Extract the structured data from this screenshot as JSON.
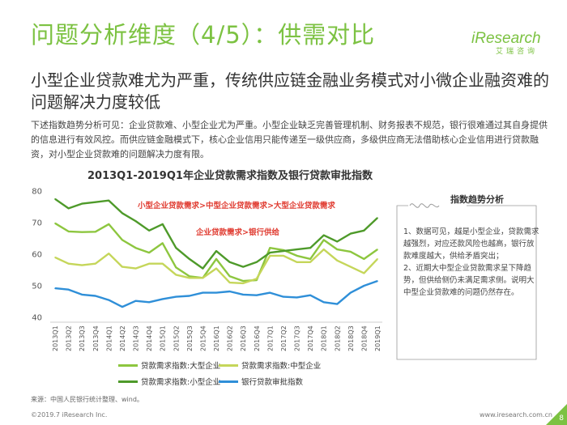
{
  "header": {
    "title": "问题分析维度（4/5）：供需对比",
    "logo_main": "iResearch",
    "logo_sub": "艾瑞咨询"
  },
  "subtitle": "小型企业贷款难尤为严重，传统供应链金融业务模式对小微企业融资难的问题解决力度较低",
  "description": "下述指数趋势分析可见：企业贷款难、小型企业尤为严重。小型企业缺乏完善管理机制、财务报表不规范，银行很难通过其自身提供的信息进行有效风控。而供应链金融模式下，核心企业信用只能传递至一级供应商，多级供应商无法借助核心企业信用进行贷款融资，对小型企业贷款难的问题解决力度有限。",
  "side_panel": {
    "heading": "指数趋势分析",
    "text": "1、数据可见，越是小型企业，贷款需求越强烈，对应还款风险也越高，银行放款难度越大，供给矛盾突出；\n2、近期大中型企业贷款需求呈下降趋势，但供给侧仍未满足需求侧。说明大中型企业贷款难的问题仍然存在。"
  },
  "footer": {
    "source": "来源：中国人民银行统计整理、wind。",
    "copyright": "©2019.7 iResearch Inc.",
    "site": "www.iresearch.com.cn",
    "page": "8"
  },
  "colors": {
    "brand": "#7cc242",
    "large": "#8dc63f",
    "medium": "#c5d65a",
    "small": "#4e9a2a",
    "bank": "#2f8fd8",
    "annotation": "#e03c31"
  },
  "chart_data": {
    "type": "line",
    "title": "2013Q1-2019Q1年企业贷款需求指数及银行贷款审批指数",
    "xlabel": "",
    "ylabel": "",
    "ylim": [
      40,
      80
    ],
    "yticks": [
      40,
      50,
      60,
      70,
      80
    ],
    "grid": false,
    "legend_position": "bottom",
    "x": [
      "2013Q1",
      "2013Q2",
      "2013Q3",
      "2013Q4",
      "2014Q1",
      "2014Q2",
      "2014Q3",
      "2014Q4",
      "2015Q1",
      "2015Q2",
      "2015Q3",
      "2015Q4",
      "2016Q1",
      "2016Q2",
      "2016Q3",
      "2016Q4",
      "2017Q1",
      "2017Q2",
      "2017Q3",
      "2017Q4",
      "2018Q1",
      "2018Q2",
      "2018Q3",
      "2018Q4",
      "2019Q1"
    ],
    "series": [
      {
        "name": "贷款需求指数:大型企业",
        "key": "large",
        "values": [
          69.8,
          67.2,
          67.0,
          67.1,
          69.5,
          64.5,
          62.0,
          60.5,
          63.5,
          55.8,
          53.0,
          52.5,
          58.5,
          53.0,
          51.5,
          51.8,
          62.0,
          61.3,
          59.5,
          58.5,
          64.5,
          61.5,
          60.8,
          58.5,
          61.5
        ]
      },
      {
        "name": "贷款需求指数:中型企业",
        "key": "medium",
        "values": [
          59.0,
          57.0,
          56.5,
          57.0,
          60.2,
          56.0,
          55.5,
          57.0,
          57.0,
          53.5,
          52.5,
          52.5,
          55.5,
          51.0,
          50.8,
          52.2,
          59.5,
          59.5,
          57.5,
          57.5,
          61.5,
          58.0,
          56.0,
          54.0,
          58.5
        ]
      },
      {
        "name": "贷款需求指数:小型企业",
        "key": "small",
        "values": [
          77.5,
          74.5,
          76.0,
          76.5,
          77.0,
          73.0,
          70.5,
          67.5,
          69.5,
          62.0,
          58.5,
          55.5,
          61.0,
          57.5,
          56.0,
          57.5,
          60.5,
          61.0,
          61.5,
          62.0,
          66.0,
          64.0,
          66.5,
          67.5,
          71.5
        ]
      },
      {
        "name": "银行贷款审批指数",
        "key": "bank",
        "values": [
          49.2,
          48.8,
          47.2,
          46.8,
          45.5,
          43.3,
          45.2,
          44.8,
          45.8,
          46.5,
          46.8,
          47.8,
          47.8,
          48.2,
          47.2,
          47.0,
          47.8,
          46.5,
          46.3,
          47.0,
          44.8,
          44.2,
          47.8,
          50.0,
          51.5
        ]
      }
    ],
    "annotations": [
      {
        "text": "小型企业贷款需求>中型企业贷款需求>大型企业贷款需求",
        "at": [
          "2014Q2",
          75
        ]
      },
      {
        "text": "企业贷款需求>银行供给",
        "at": [
          "2015Q3",
          67
        ]
      }
    ]
  }
}
